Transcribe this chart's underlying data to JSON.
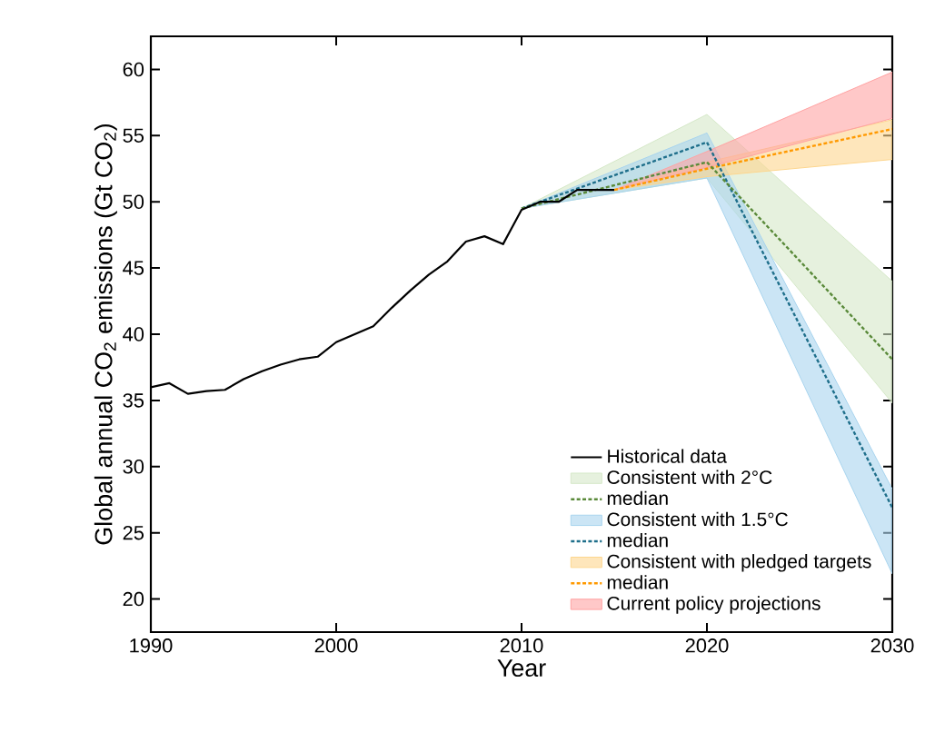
{
  "chart_data": {
    "type": "line",
    "xlabel": "Year",
    "ylabel": "Global annual CO$_{2}$ emissions (Gt CO$_{2}$)",
    "xlim": [
      1990,
      2030
    ],
    "ylim": [
      17.5,
      62.5
    ],
    "xticks": [
      1990,
      2000,
      2010,
      2020,
      2030
    ],
    "yticks": [
      20,
      25,
      30,
      35,
      40,
      45,
      50,
      55,
      60
    ],
    "legend": "bottom right",
    "grid": false,
    "series": [
      {
        "name": "Historical data",
        "color": "#000000",
        "line_style": "solid",
        "x": [
          1990,
          1991,
          1992,
          1993,
          1994,
          1995,
          1996,
          1997,
          1998,
          1999,
          2000,
          2001,
          2002,
          2003,
          2004,
          2005,
          2006,
          2007,
          2008,
          2009,
          2010,
          2011,
          2012,
          2013,
          2014,
          2015
        ],
        "values": [
          36.0,
          36.3,
          35.5,
          35.7,
          35.8,
          36.6,
          37.2,
          37.7,
          38.1,
          38.3,
          39.4,
          40.0,
          40.6,
          42.0,
          43.3,
          44.5,
          45.5,
          47.0,
          47.4,
          46.8,
          49.4,
          50.0,
          50.0,
          50.9,
          50.9,
          50.9
        ]
      },
      {
        "name": "Consistent with 2°C",
        "type": "area",
        "color": "#d5e8c8",
        "x": [
          2010,
          2020,
          2030
        ],
        "values": [
          null,
          null,
          null
        ],
        "lower": [
          49.5,
          51.8,
          34.8
        ],
        "upper": [
          49.5,
          56.6,
          44.0
        ]
      },
      {
        "name": "median",
        "color": "#5a8a3a",
        "line_style": "dashed",
        "x": [
          2010,
          2020,
          2030
        ],
        "values": [
          49.5,
          53.0,
          38.1
        ]
      },
      {
        "name": "Consistent with 1.5°C",
        "type": "area",
        "color": "#a8d4ee",
        "x": [
          2010,
          2020,
          2030
        ],
        "values": [
          null,
          null,
          null
        ],
        "lower": [
          49.5,
          51.8,
          21.9
        ],
        "upper": [
          49.5,
          55.2,
          28.3
        ]
      },
      {
        "name": "median",
        "color": "#1f6f8b",
        "line_style": "dashed",
        "x": [
          2010,
          2020,
          2030
        ],
        "values": [
          49.5,
          54.5,
          26.9
        ]
      },
      {
        "name": "Consistent with pledged targets",
        "type": "area",
        "color": "#fdd68e",
        "x": [
          2015,
          2020,
          2030
        ],
        "values": [
          null,
          null,
          null
        ],
        "lower": [
          50.9,
          51.9,
          53.2
        ],
        "upper": [
          50.9,
          53.0,
          56.2
        ]
      },
      {
        "name": "median",
        "color": "#ff9900",
        "line_style": "dashed",
        "x": [
          2015,
          2020,
          2030
        ],
        "values": [
          50.9,
          52.5,
          55.5
        ]
      },
      {
        "name": "Current policy projections",
        "type": "area",
        "color": "#ffa3a3",
        "x": [
          2015,
          2020,
          2030
        ],
        "values": [
          null,
          null,
          null
        ],
        "lower": [
          50.9,
          52.6,
          56.3
        ],
        "upper": [
          50.9,
          53.8,
          59.8
        ]
      }
    ]
  }
}
